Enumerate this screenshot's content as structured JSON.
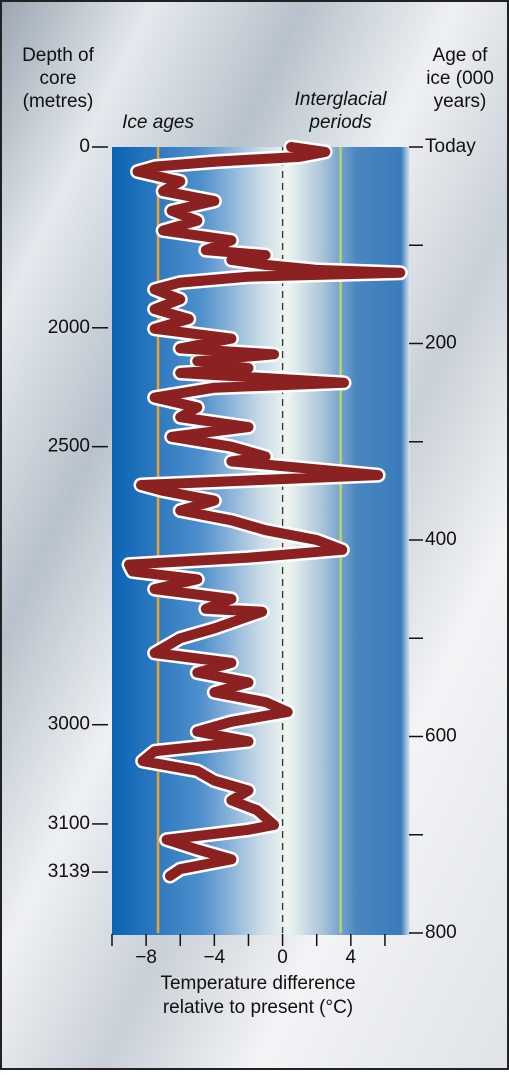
{
  "chart_data": {
    "type": "line",
    "depth_axis_label": [
      "Depth of",
      "core",
      "(metres)"
    ],
    "age_axis_label": [
      "Age of",
      "ice (000",
      "years)"
    ],
    "x_axis_label": [
      "Temperature difference",
      "relative to present (°C)"
    ],
    "annotations": [
      {
        "text": [
          "Ice ages"
        ],
        "value": -7.3,
        "color": "#eaa12f"
      },
      {
        "text": [
          "Interglacial",
          "periods"
        ],
        "value": 3.4,
        "color": "#b5d66a"
      }
    ],
    "xlim": [
      -10,
      7
    ],
    "xticks": [
      {
        "value": -8,
        "label": "−8"
      },
      {
        "value": -4,
        "label": "−4"
      },
      0,
      4
    ],
    "xminor_ticks": [
      -10,
      -6,
      -2,
      2,
      6
    ],
    "ylim": [
      0,
      800
    ],
    "yticks": [
      {
        "value": 0,
        "label": "Today"
      },
      200,
      400,
      600,
      800
    ],
    "yminor_ticks": [
      100,
      300,
      500,
      700
    ],
    "depth_ticks": [
      {
        "depth": 0,
        "age": 0
      },
      {
        "depth": 2000,
        "age": 184
      },
      {
        "depth": 2500,
        "age": 305
      },
      {
        "depth": 3000,
        "age": 588
      },
      {
        "depth": 3100,
        "age": 689
      },
      {
        "depth": 3139,
        "age": 738
      }
    ],
    "zero_line": 0,
    "series": [
      {
        "color": "#8b2221",
        "age": [
          0,
          5,
          10,
          15,
          20,
          25,
          35,
          45,
          55,
          65,
          75,
          85,
          95,
          105,
          110,
          115,
          120,
          125,
          128,
          132,
          138,
          145,
          155,
          165,
          175,
          185,
          195,
          205,
          211,
          218,
          225,
          230,
          240,
          245,
          255,
          265,
          275,
          285,
          295,
          305,
          315,
          320,
          334,
          344,
          350,
          360,
          370,
          380,
          390,
          400,
          410,
          418,
          425,
          432,
          440,
          450,
          460,
          470,
          473,
          490,
          500,
          515,
          525,
          535,
          545,
          555,
          565,
          575,
          585,
          595,
          605,
          615,
          625,
          635,
          645,
          655,
          665,
          675,
          690,
          695,
          705,
          715,
          725,
          735,
          742
        ],
        "values": [
          0.5,
          2.5,
          1.0,
          -4,
          -7.5,
          -8.5,
          -6,
          -7,
          -4,
          -6.5,
          -5,
          -7,
          -3,
          -4.5,
          -1,
          -3,
          -1,
          2,
          6.9,
          -2,
          -6,
          -7.5,
          -6,
          -7.5,
          -5.5,
          -7.5,
          -3,
          -6,
          -0.5,
          -5,
          -2,
          -6,
          3.6,
          -4,
          -7.5,
          -5,
          -6,
          -2,
          -6.5,
          -3,
          -1,
          -3,
          5.6,
          -8.3,
          -7,
          -4,
          -6,
          -3,
          -1,
          2,
          3.5,
          -2,
          -9,
          -8.8,
          -5,
          -7.5,
          -3,
          -4.5,
          -1.2,
          -4,
          -6,
          -7.5,
          -3,
          -5,
          -2,
          -4,
          -1,
          0.3,
          -3,
          -5,
          -2,
          -7.5,
          -8.2,
          -5,
          -4,
          -2,
          -3,
          -1.5,
          -0.5,
          -2,
          -6.8,
          -5,
          -3,
          -6,
          -6.6
        ]
      }
    ]
  }
}
